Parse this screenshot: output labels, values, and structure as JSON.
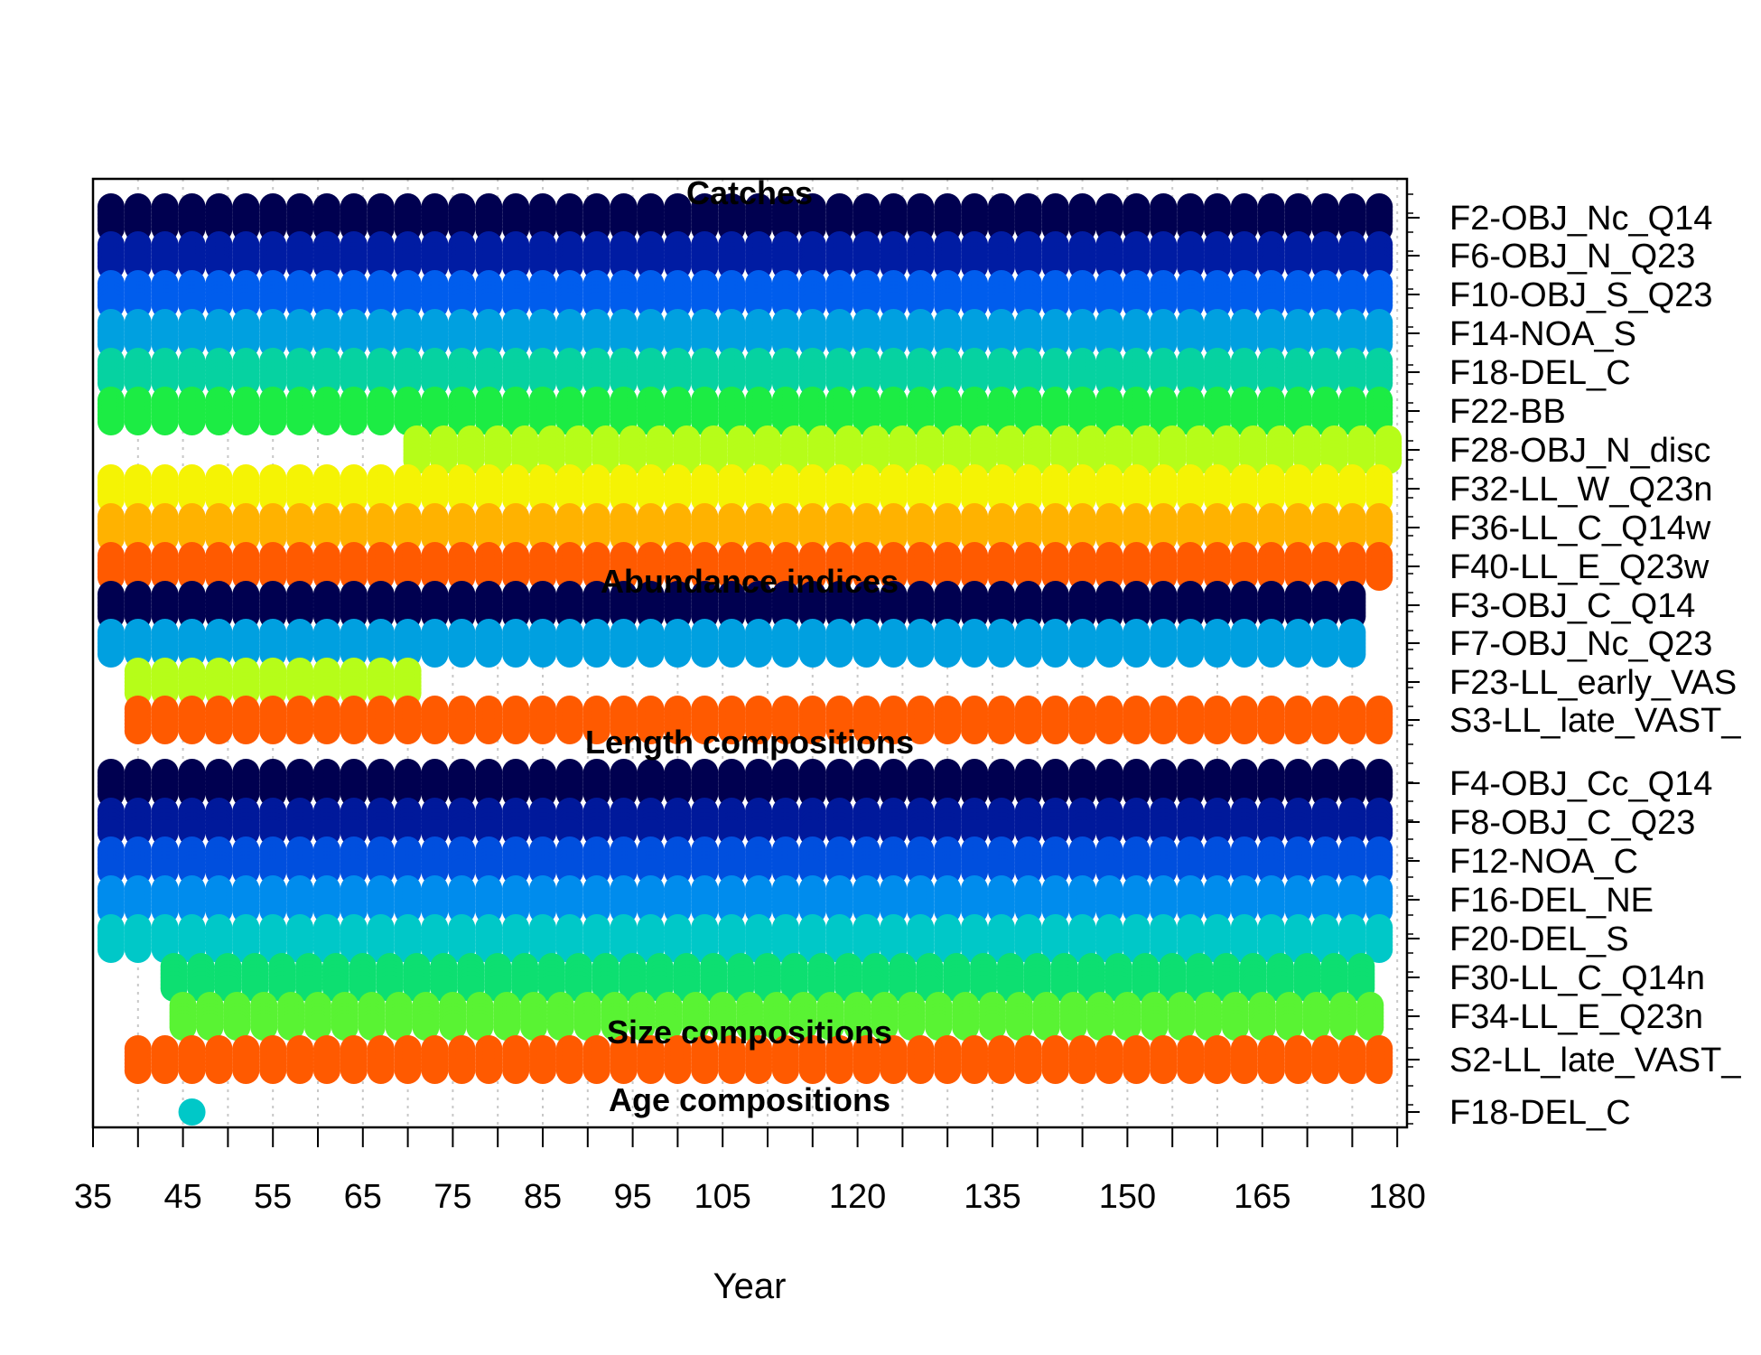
{
  "chart_data": {
    "type": "scatter",
    "title": "",
    "xlabel": "Year",
    "ylabel": "",
    "xlim": [
      35,
      181
    ],
    "x_ticks_major": [
      35,
      45,
      55,
      65,
      75,
      85,
      95,
      105,
      120,
      135,
      150,
      165,
      180
    ],
    "x_ticks_minor_step": 5,
    "grid": true,
    "legend": "none",
    "sections": [
      {
        "name": "Catches",
        "color_range": [
          "dark-navy",
          "orange"
        ],
        "series": [
          {
            "label": "F2-OBJ_Nc_Q14",
            "x_start": 37,
            "x_end": 180
          },
          {
            "label": "F6-OBJ_N_Q23",
            "x_start": 37,
            "x_end": 180
          },
          {
            "label": "F10-OBJ_S_Q23",
            "x_start": 37,
            "x_end": 180
          },
          {
            "label": "F14-NOA_S",
            "x_start": 37,
            "x_end": 180
          },
          {
            "label": "F18-DEL_C",
            "x_start": 37,
            "x_end": 180
          },
          {
            "label": "F22-BB",
            "x_start": 37,
            "x_end": 180
          },
          {
            "label": "F28-OBJ_N_disc",
            "x_start": 71,
            "x_end": 180
          },
          {
            "label": "F32-LL_W_Q23n",
            "x_start": 37,
            "x_end": 180
          },
          {
            "label": "F36-LL_C_Q14w",
            "x_start": 37,
            "x_end": 180
          },
          {
            "label": "F40-LL_E_Q23w",
            "x_start": 37,
            "x_end": 180
          }
        ]
      },
      {
        "name": "Abundance indices",
        "series": [
          {
            "label": "F3-OBJ_C_Q14",
            "x_start": 37,
            "x_end": 177
          },
          {
            "label": "F7-OBJ_Nc_Q23",
            "x_start": 37,
            "x_end": 177
          },
          {
            "label": "F23-LL_early_VAS",
            "x_start": 40,
            "x_end": 72
          },
          {
            "label": "S3-LL_late_VAST_",
            "x_start": 40,
            "x_end": 180
          }
        ]
      },
      {
        "name": "Length compositions",
        "series": [
          {
            "label": "F4-OBJ_Cc_Q14",
            "x_start": 37,
            "x_end": 180
          },
          {
            "label": "F8-OBJ_C_Q23",
            "x_start": 37,
            "x_end": 180
          },
          {
            "label": "F12-NOA_C",
            "x_start": 37,
            "x_end": 180
          },
          {
            "label": "F16-DEL_NE",
            "x_start": 37,
            "x_end": 180
          },
          {
            "label": "F20-DEL_S",
            "x_start": 37,
            "x_end": 180
          },
          {
            "label": "F30-LL_C_Q14n",
            "x_start": 44,
            "x_end": 177
          },
          {
            "label": "F34-LL_E_Q23n",
            "x_start": 45,
            "x_end": 177
          }
        ]
      },
      {
        "name": "Size compositions",
        "series": [
          {
            "label": "S2-LL_late_VAST_",
            "x_start": 40,
            "x_end": 180
          }
        ]
      },
      {
        "name": "Age compositions",
        "series": [
          {
            "label": "F18-DEL_C",
            "x": [
              46
            ]
          }
        ]
      }
    ]
  }
}
